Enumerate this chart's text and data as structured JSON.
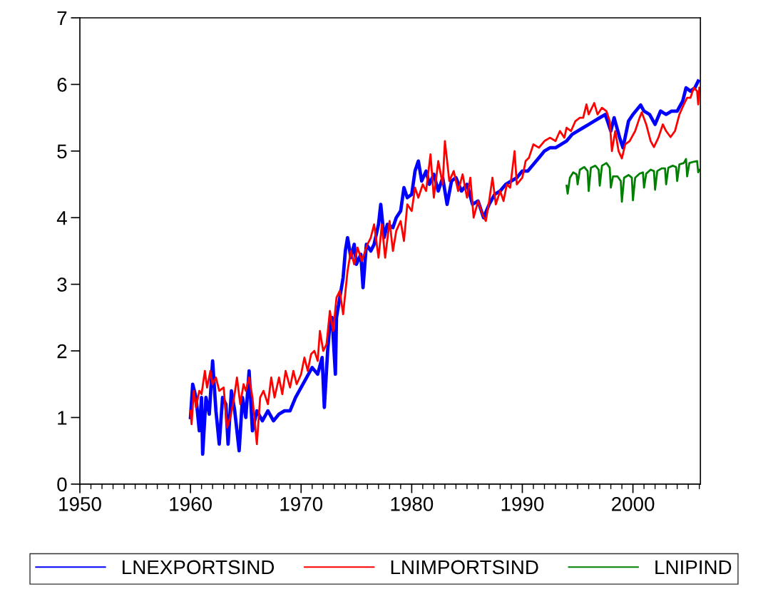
{
  "chart_data": {
    "type": "line",
    "xlim": [
      1950,
      2006.1
    ],
    "ylim": [
      0,
      7
    ],
    "xticks": [
      1950,
      {
        "value": 1951,
        "label": null
      },
      {
        "value": 1952,
        "label": null
      },
      {
        "value": 1953,
        "label": null
      },
      {
        "value": 1954,
        "label": null
      },
      {
        "value": 1955,
        "label": null
      },
      {
        "value": 1956,
        "label": null
      },
      {
        "value": 1957,
        "label": null
      },
      {
        "value": 1958,
        "label": null
      },
      {
        "value": 1959,
        "label": null
      },
      1960,
      {
        "value": 1961,
        "label": null
      },
      {
        "value": 1962,
        "label": null
      },
      {
        "value": 1963,
        "label": null
      },
      {
        "value": 1964,
        "label": null
      },
      {
        "value": 1965,
        "label": null
      },
      {
        "value": 1966,
        "label": null
      },
      {
        "value": 1967,
        "label": null
      },
      {
        "value": 1968,
        "label": null
      },
      {
        "value": 1969,
        "label": null
      },
      1970,
      {
        "value": 1971,
        "label": null
      },
      {
        "value": 1972,
        "label": null
      },
      {
        "value": 1973,
        "label": null
      },
      {
        "value": 1974,
        "label": null
      },
      {
        "value": 1975,
        "label": null
      },
      {
        "value": 1976,
        "label": null
      },
      {
        "value": 1977,
        "label": null
      },
      {
        "value": 1978,
        "label": null
      },
      {
        "value": 1979,
        "label": null
      },
      1980,
      {
        "value": 1981,
        "label": null
      },
      {
        "value": 1982,
        "label": null
      },
      {
        "value": 1983,
        "label": null
      },
      {
        "value": 1984,
        "label": null
      },
      {
        "value": 1985,
        "label": null
      },
      {
        "value": 1986,
        "label": null
      },
      {
        "value": 1987,
        "label": null
      },
      {
        "value": 1988,
        "label": null
      },
      {
        "value": 1989,
        "label": null
      },
      1990,
      {
        "value": 1991,
        "label": null
      },
      {
        "value": 1992,
        "label": null
      },
      {
        "value": 1993,
        "label": null
      },
      {
        "value": 1994,
        "label": null
      },
      {
        "value": 1995,
        "label": null
      },
      {
        "value": 1996,
        "label": null
      },
      {
        "value": 1997,
        "label": null
      },
      {
        "value": 1998,
        "label": null
      },
      {
        "value": 1999,
        "label": null
      },
      2000,
      {
        "value": 2001,
        "label": null
      },
      {
        "value": 2002,
        "label": null
      },
      {
        "value": 2003,
        "label": null
      },
      {
        "value": 2004,
        "label": null
      },
      {
        "value": 2005,
        "label": null
      },
      {
        "value": 2006,
        "label": null
      }
    ],
    "yticks": [
      0,
      1,
      2,
      3,
      4,
      5,
      6,
      7
    ],
    "grid": false,
    "legend": "bottom",
    "marker": "none",
    "line_style": "solid",
    "series": [
      {
        "name": "LNEXPORTSIND",
        "color": "#0000ff",
        "x": [
          1960.0,
          1960.2,
          1960.5,
          1960.8,
          1961.0,
          1961.1,
          1961.4,
          1961.7,
          1962.0,
          1962.3,
          1962.6,
          1962.9,
          1963.2,
          1963.4,
          1963.7,
          1964.0,
          1964.4,
          1964.7,
          1965.0,
          1965.3,
          1965.6,
          1966.0,
          1966.5,
          1967.0,
          1967.5,
          1968.0,
          1968.5,
          1969.0,
          1969.5,
          1970.0,
          1970.5,
          1971.0,
          1971.5,
          1971.9,
          1972.1,
          1972.4,
          1972.6,
          1972.8,
          1973.1,
          1973.2,
          1973.5,
          1973.8,
          1974.0,
          1974.2,
          1974.5,
          1974.8,
          1975.0,
          1975.4,
          1975.6,
          1975.9,
          1976.3,
          1976.6,
          1977.0,
          1977.2,
          1977.5,
          1977.8,
          1978.3,
          1978.6,
          1979.0,
          1979.3,
          1979.6,
          1980.0,
          1980.3,
          1980.6,
          1980.9,
          1981.3,
          1981.6,
          1982.0,
          1982.4,
          1982.8,
          1983.2,
          1983.6,
          1984.0,
          1984.5,
          1985.0,
          1985.5,
          1986.0,
          1986.5,
          1987.0,
          1987.5,
          1988.0,
          1988.5,
          1989.0,
          1989.5,
          1990.0,
          1990.5,
          1991.0,
          1991.5,
          1992.0,
          1992.5,
          1993.0,
          1993.5,
          1994.0,
          1994.5,
          1995.0,
          1995.5,
          1996.0,
          1996.5,
          1997.0,
          1997.5,
          1998.0,
          1998.3,
          1998.8,
          1999.1,
          1999.6,
          2000.0,
          2000.7,
          2001.0,
          2001.5,
          2002.0,
          2002.5,
          2003.0,
          2003.5,
          2004.0,
          2004.5,
          2004.8,
          2005.2,
          2005.6,
          2005.9
        ],
        "values": [
          1.0,
          1.5,
          1.3,
          0.8,
          1.3,
          0.45,
          1.3,
          1.05,
          1.85,
          1.1,
          0.6,
          1.3,
          1.2,
          0.6,
          1.4,
          1.1,
          0.5,
          1.3,
          1.0,
          1.7,
          0.8,
          1.1,
          0.95,
          1.1,
          0.95,
          1.05,
          1.1,
          1.1,
          1.3,
          1.45,
          1.6,
          1.75,
          1.65,
          1.9,
          1.15,
          2.0,
          2.4,
          2.5,
          1.65,
          2.5,
          2.8,
          3.1,
          3.5,
          3.7,
          3.4,
          3.6,
          3.3,
          3.45,
          2.95,
          3.6,
          3.5,
          3.6,
          3.9,
          4.2,
          3.7,
          3.9,
          3.85,
          4.0,
          4.1,
          4.45,
          4.3,
          4.35,
          4.7,
          4.85,
          4.55,
          4.7,
          4.5,
          4.65,
          4.4,
          4.6,
          4.2,
          4.55,
          4.6,
          4.4,
          4.5,
          4.2,
          4.25,
          4.0,
          4.2,
          4.35,
          4.4,
          4.5,
          4.55,
          4.6,
          4.7,
          4.7,
          4.8,
          4.9,
          5.0,
          5.05,
          5.05,
          5.1,
          5.15,
          5.25,
          5.3,
          5.35,
          5.4,
          5.45,
          5.5,
          5.55,
          5.3,
          5.5,
          5.2,
          5.05,
          5.45,
          5.55,
          5.69,
          5.6,
          5.55,
          5.4,
          5.6,
          5.55,
          5.6,
          5.6,
          5.75,
          5.95,
          5.9,
          5.95,
          6.05
        ]
      },
      {
        "name": "LNIMPORTSIND",
        "color": "#ff0000",
        "x": [
          1960.0,
          1960.1,
          1960.3,
          1960.5,
          1960.8,
          1961.0,
          1961.3,
          1961.5,
          1961.8,
          1962.0,
          1962.3,
          1962.6,
          1963.0,
          1963.3,
          1963.6,
          1963.9,
          1964.2,
          1964.5,
          1964.8,
          1965.0,
          1965.3,
          1965.6,
          1966.0,
          1966.3,
          1966.6,
          1967.0,
          1967.3,
          1967.6,
          1968.0,
          1968.3,
          1968.6,
          1969.0,
          1969.3,
          1969.6,
          1970.0,
          1970.3,
          1970.6,
          1970.9,
          1971.2,
          1971.5,
          1971.7,
          1972.0,
          1972.3,
          1972.6,
          1972.9,
          1973.2,
          1973.5,
          1973.8,
          1974.2,
          1974.5,
          1974.8,
          1975.1,
          1975.5,
          1976.0,
          1976.3,
          1976.6,
          1977.0,
          1977.3,
          1977.6,
          1978.0,
          1978.3,
          1978.6,
          1979.0,
          1979.3,
          1979.6,
          1980.0,
          1980.3,
          1980.6,
          1981.0,
          1981.3,
          1981.7,
          1982.0,
          1982.4,
          1982.8,
          1983.0,
          1983.4,
          1983.8,
          1984.2,
          1984.6,
          1985.0,
          1985.3,
          1985.6,
          1986.0,
          1986.4,
          1986.7,
          1987.0,
          1987.3,
          1987.6,
          1988.0,
          1988.3,
          1988.6,
          1988.9,
          1989.3,
          1989.5,
          1990.0,
          1990.3,
          1990.6,
          1991.0,
          1991.5,
          1992.0,
          1992.5,
          1993.0,
          1993.4,
          1993.8,
          1994.0,
          1994.4,
          1994.8,
          1995.2,
          1995.5,
          1995.8,
          1996.0,
          1996.5,
          1996.8,
          1997.2,
          1997.6,
          1997.9,
          1998.1,
          1998.4,
          1998.7,
          1999.0,
          1999.3,
          1999.7,
          2000.2,
          2000.6,
          2000.8,
          2001.2,
          2001.6,
          2001.9,
          2002.3,
          2002.7,
          2003.0,
          2003.4,
          2003.8,
          2004.2,
          2004.6,
          2004.9,
          2005.2,
          2005.5,
          2005.8,
          2005.9,
          2006.0
        ],
        "values": [
          1.1,
          0.9,
          1.4,
          1.15,
          1.4,
          1.35,
          1.7,
          1.45,
          1.7,
          1.5,
          1.6,
          1.4,
          1.45,
          0.85,
          1.0,
          1.25,
          1.6,
          1.2,
          1.5,
          1.4,
          1.6,
          1.3,
          0.6,
          1.3,
          1.4,
          1.2,
          1.6,
          1.3,
          1.6,
          1.35,
          1.7,
          1.45,
          1.7,
          1.5,
          1.65,
          1.9,
          1.7,
          1.95,
          2.0,
          1.85,
          2.3,
          2.0,
          2.1,
          2.6,
          2.3,
          2.8,
          2.9,
          2.55,
          3.2,
          3.5,
          3.3,
          3.55,
          3.35,
          3.6,
          3.7,
          3.9,
          3.4,
          3.9,
          3.4,
          3.95,
          3.5,
          3.8,
          3.95,
          3.65,
          4.2,
          4.1,
          4.45,
          4.3,
          4.5,
          4.4,
          4.95,
          4.3,
          4.85,
          4.5,
          5.15,
          4.55,
          4.7,
          4.4,
          4.65,
          4.3,
          4.6,
          4.0,
          4.25,
          4.05,
          3.95,
          4.25,
          4.6,
          4.2,
          4.4,
          4.25,
          4.5,
          4.45,
          5.0,
          4.5,
          4.6,
          4.85,
          4.9,
          5.1,
          5.05,
          5.15,
          5.2,
          5.15,
          5.3,
          5.2,
          5.35,
          5.3,
          5.45,
          5.5,
          5.5,
          5.7,
          5.55,
          5.72,
          5.55,
          5.65,
          5.6,
          5.45,
          5.0,
          5.3,
          5.0,
          4.89,
          5.1,
          5.15,
          5.3,
          5.5,
          5.58,
          5.4,
          5.15,
          5.06,
          5.2,
          5.4,
          5.3,
          5.21,
          5.3,
          5.55,
          5.7,
          5.8,
          5.8,
          5.95,
          5.9,
          5.7,
          5.95
        ]
      },
      {
        "name": "LNIPIND",
        "color": "#008000",
        "x": [
          1994.0,
          1994.1,
          1994.3,
          1994.6,
          1994.9,
          1995.0,
          1995.2,
          1995.6,
          1995.9,
          1996.0,
          1996.2,
          1996.6,
          1996.9,
          1997.0,
          1997.2,
          1997.6,
          1997.9,
          1998.0,
          1998.2,
          1998.6,
          1998.9,
          1999.0,
          1999.2,
          1999.6,
          1999.9,
          2000.0,
          2000.2,
          2000.6,
          2000.9,
          2001.0,
          2001.2,
          2001.6,
          2001.9,
          2002.0,
          2002.2,
          2002.6,
          2002.9,
          2003.0,
          2003.2,
          2003.6,
          2003.9,
          2004.0,
          2004.2,
          2004.6,
          2004.8,
          2004.9,
          2005.1,
          2005.5,
          2005.8,
          2005.9,
          2006.0
        ],
        "values": [
          4.48,
          4.36,
          4.6,
          4.68,
          4.65,
          4.5,
          4.72,
          4.76,
          4.7,
          4.4,
          4.75,
          4.78,
          4.72,
          4.48,
          4.78,
          4.82,
          4.75,
          4.45,
          4.62,
          4.62,
          4.55,
          4.24,
          4.6,
          4.64,
          4.6,
          4.26,
          4.6,
          4.66,
          4.68,
          4.45,
          4.66,
          4.72,
          4.7,
          4.42,
          4.7,
          4.74,
          4.74,
          4.5,
          4.75,
          4.78,
          4.76,
          4.55,
          4.8,
          4.82,
          4.88,
          4.62,
          4.82,
          4.84,
          4.85,
          4.68,
          4.72
        ]
      }
    ]
  }
}
